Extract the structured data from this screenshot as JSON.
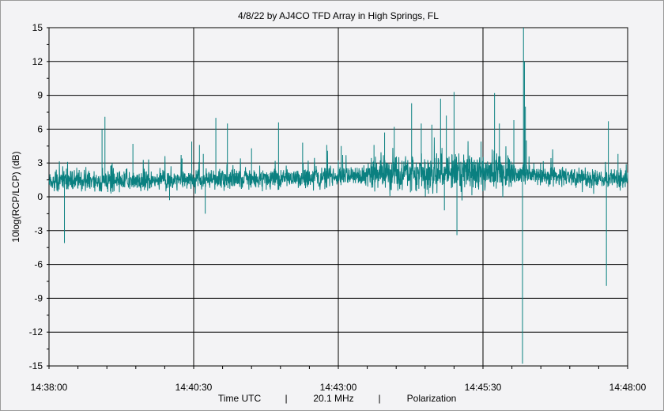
{
  "chart_data": {
    "type": "line",
    "title": "4/8/22  by  AJ4CO TFD Array  in  High Springs, FL",
    "ylabel": "10log(RCP/LCP)  (dB)",
    "footer": {
      "xlabel": "Time UTC",
      "frequency": "20.1 MHz",
      "mode": "Polarization",
      "separator": "|"
    },
    "ylim": [
      -15,
      15
    ],
    "yticks": [
      15,
      12,
      9,
      6,
      3,
      0,
      -3,
      -6,
      -9,
      -12,
      -15
    ],
    "xlim_seconds": [
      0,
      600
    ],
    "xticks": [
      {
        "t": 0,
        "label": "14:38:00"
      },
      {
        "t": 150,
        "label": "14:40:30"
      },
      {
        "t": 300,
        "label": "14:43:00"
      },
      {
        "t": 450,
        "label": "14:45:30"
      },
      {
        "t": 600,
        "label": "14:48:00"
      }
    ],
    "grid": true,
    "series": [
      {
        "color": "#0a8080",
        "baseline": [
          [
            0,
            1.4
          ],
          [
            50,
            1.4
          ],
          [
            100,
            1.5
          ],
          [
            150,
            1.5
          ],
          [
            200,
            1.6
          ],
          [
            250,
            1.7
          ],
          [
            300,
            1.8
          ],
          [
            350,
            2.0
          ],
          [
            400,
            2.1
          ],
          [
            450,
            2.1
          ],
          [
            500,
            1.9
          ],
          [
            550,
            1.7
          ],
          [
            600,
            1.6
          ]
        ],
        "spikes": [
          [
            16,
            -4.1
          ],
          [
            18,
            2.5
          ],
          [
            55,
            6.0
          ],
          [
            58,
            7.1
          ],
          [
            87,
            4.7
          ],
          [
            125,
            -0.3
          ],
          [
            138,
            3.4
          ],
          [
            148,
            4.9
          ],
          [
            156,
            4.6
          ],
          [
            160,
            3.8
          ],
          [
            162,
            -1.5
          ],
          [
            173,
            7.0
          ],
          [
            185,
            6.5
          ],
          [
            210,
            4.3
          ],
          [
            238,
            6.6
          ],
          [
            263,
            4.8
          ],
          [
            288,
            4.6
          ],
          [
            303,
            4.5
          ],
          [
            337,
            4.6
          ],
          [
            348,
            5.7
          ],
          [
            358,
            6.2
          ],
          [
            376,
            8.3
          ],
          [
            386,
            6.5
          ],
          [
            397,
            6.4
          ],
          [
            406,
            8.7
          ],
          [
            410,
            -1.2
          ],
          [
            412,
            7.2
          ],
          [
            420,
            9.3
          ],
          [
            423,
            -3.4
          ],
          [
            448,
            4.9
          ],
          [
            462,
            9.2
          ],
          [
            467,
            6.5
          ],
          [
            482,
            6.8
          ],
          [
            492,
            15.0
          ],
          [
            493,
            12.0
          ],
          [
            494,
            8.0
          ],
          [
            495,
            5.0
          ],
          [
            491,
            -14.8
          ],
          [
            580,
            6.7
          ],
          [
            578,
            -7.9
          ],
          [
            590,
            3.8
          ]
        ]
      }
    ]
  }
}
